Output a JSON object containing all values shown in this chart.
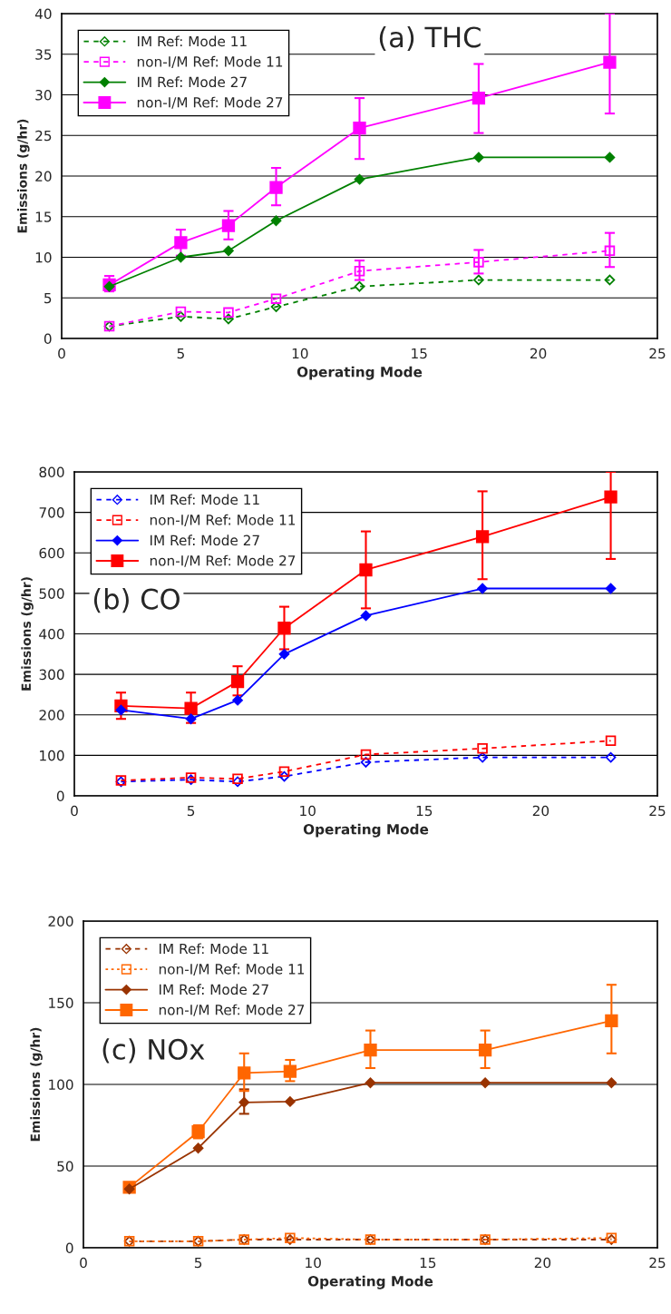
{
  "chart_data": [
    {
      "type": "line",
      "title": "(a) THC",
      "xlabel": "Operating Mode",
      "ylabel": "Emissions (g/hr)",
      "x": [
        2,
        5,
        7,
        9,
        12.5,
        17.5,
        23
      ],
      "xlim": [
        0,
        25
      ],
      "xticks": [
        0,
        5,
        10,
        15,
        20,
        25
      ],
      "ylim": [
        0,
        40
      ],
      "yticks": [
        0,
        5,
        10,
        15,
        20,
        25,
        30,
        35,
        40
      ],
      "grid": "y",
      "legend": "top left",
      "series": [
        {
          "name": "IM Ref: Mode 11",
          "color": "#008000",
          "marker": "diamond",
          "line_style": "dashed",
          "values": [
            1.5,
            2.7,
            2.4,
            3.9,
            6.4,
            7.2,
            7.2
          ]
        },
        {
          "name": "non-I/M Ref: Mode 11",
          "color": "#ff00ff",
          "marker": "square",
          "line_style": "dashed",
          "values": [
            1.5,
            3.3,
            3.2,
            4.9,
            8.3,
            9.4,
            10.8
          ],
          "errors": [
            null,
            null,
            null,
            null,
            [
              7.2,
              9.6
            ],
            [
              8.0,
              10.9
            ],
            [
              8.8,
              13.0
            ]
          ]
        },
        {
          "name": "IM Ref: Mode 27",
          "color": "#008000",
          "marker": "diamond",
          "line_style": "solid",
          "values": [
            6.4,
            10.0,
            10.8,
            14.5,
            19.6,
            22.3,
            22.3
          ]
        },
        {
          "name": "non-I/M Ref: Mode 27",
          "color": "#ff00ff",
          "marker": "square",
          "line_style": "solid",
          "values": [
            6.6,
            11.8,
            13.9,
            18.6,
            25.9,
            29.6,
            34.0
          ],
          "errors": [
            [
              5.8,
              7.7
            ],
            [
              10.2,
              13.4
            ],
            [
              12.2,
              15.7
            ],
            [
              16.4,
              21.0
            ],
            [
              22.1,
              29.6
            ],
            [
              25.3,
              33.8
            ],
            [
              27.7,
              40
            ]
          ]
        }
      ]
    },
    {
      "type": "line",
      "title": "(b) CO",
      "xlabel": "Operating Mode",
      "ylabel": "Emissions (g/hr)",
      "x": [
        2,
        5,
        7,
        9,
        12.5,
        17.5,
        23
      ],
      "xlim": [
        0,
        25
      ],
      "xticks": [
        0,
        5,
        10,
        15,
        20,
        25
      ],
      "ylim": [
        0,
        800
      ],
      "yticks": [
        0,
        100,
        200,
        300,
        400,
        500,
        600,
        700,
        800
      ],
      "grid": "y",
      "legend": "top left",
      "series": [
        {
          "name": "IM Ref: Mode 11",
          "color": "#0000ff",
          "marker": "diamond",
          "line_style": "dashed",
          "values": [
            35,
            40,
            35,
            48,
            83,
            95,
            95
          ]
        },
        {
          "name": "non-I/M Ref: Mode 11",
          "color": "#ff0000",
          "marker": "square",
          "line_style": "dashed",
          "values": [
            38,
            45,
            42,
            60,
            102,
            117,
            136
          ]
        },
        {
          "name": "IM Ref: Mode 27",
          "color": "#0000ff",
          "marker": "diamond",
          "line_style": "solid",
          "values": [
            212,
            190,
            236,
            350,
            445,
            512,
            512
          ]
        },
        {
          "name": "non-I/M Ref: Mode 27",
          "color": "#ff0000",
          "marker": "square",
          "line_style": "solid",
          "values": [
            222,
            216,
            282,
            414,
            558,
            640,
            738
          ],
          "errors": [
            [
              190,
              255
            ],
            [
              180,
              255
            ],
            [
              248,
              320
            ],
            [
              362,
              467
            ],
            [
              463,
              653
            ],
            [
              535,
              752
            ],
            [
              585,
              800
            ]
          ]
        }
      ]
    },
    {
      "type": "line",
      "title": "(c) NOx",
      "xlabel": "Operating Mode",
      "ylabel": "Emissions (g/hr)",
      "x": [
        2,
        5,
        7,
        9,
        12.5,
        17.5,
        23
      ],
      "xlim": [
        0,
        25
      ],
      "xticks": [
        0,
        5,
        10,
        15,
        20,
        25
      ],
      "ylim": [
        0,
        200
      ],
      "yticks": [
        0,
        50,
        100,
        150,
        200
      ],
      "grid": "y",
      "legend": "top left",
      "series": [
        {
          "name": "IM Ref: Mode 11",
          "color": "#993300",
          "marker": "diamond",
          "line_style": "dashed",
          "values": [
            4,
            4,
            5,
            5,
            5,
            5,
            5
          ]
        },
        {
          "name": "non-I/M Ref: Mode 11",
          "color": "#ff6600",
          "marker": "square",
          "line_style": "dotted",
          "values": [
            4,
            4,
            5,
            6,
            5,
            5,
            6
          ]
        },
        {
          "name": "IM Ref: Mode 27",
          "color": "#993300",
          "marker": "diamond",
          "line_style": "solid",
          "values": [
            36,
            61,
            89,
            89.5,
            101,
            101,
            101
          ],
          "errors": [
            null,
            null,
            [
              82,
              97
            ],
            null,
            null,
            null,
            null
          ]
        },
        {
          "name": "non-I/M Ref: Mode 27",
          "color": "#ff6600",
          "marker": "square",
          "line_style": "solid",
          "values": [
            37,
            71,
            107,
            108,
            121,
            121,
            139
          ],
          "errors": [
            null,
            [
              67,
              75
            ],
            [
              96,
              119
            ],
            [
              102,
              115
            ],
            [
              110,
              133
            ],
            [
              110,
              133
            ],
            [
              119,
              161
            ]
          ]
        }
      ]
    }
  ]
}
